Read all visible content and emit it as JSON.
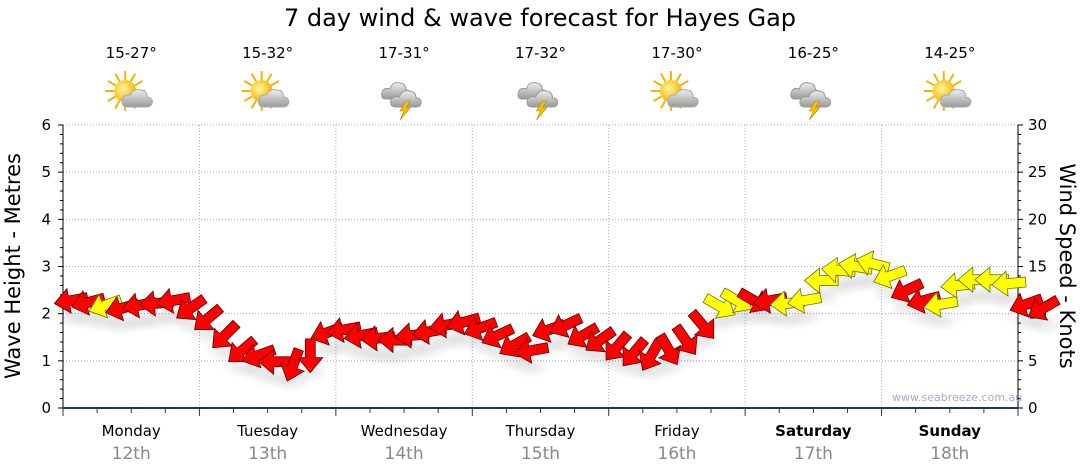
{
  "chart_data": {
    "type": "scatter",
    "title": "7 day wind & wave forecast for Hayes Gap",
    "ylabel_left": "Wave Height - Metres",
    "ylabel_right": "Wind Speed - Knots",
    "ylim_left": [
      0,
      6
    ],
    "ylim_right": [
      0,
      30
    ],
    "yticks_left": [
      "0",
      "1",
      "2",
      "3",
      "4",
      "5",
      "6"
    ],
    "yticks_right": [
      "0",
      "5",
      "10",
      "15",
      "20",
      "25",
      "30"
    ],
    "grid": true,
    "watermark": "www.seabreeze.com.au",
    "days": [
      {
        "name": "Monday",
        "date": "12th",
        "temp": "15-27°",
        "icon": "sun-cloud",
        "weekend": false
      },
      {
        "name": "Tuesday",
        "date": "13th",
        "temp": "15-32°",
        "icon": "sun-cloud",
        "weekend": false
      },
      {
        "name": "Wednesday",
        "date": "14th",
        "temp": "17-31°",
        "icon": "storm",
        "weekend": false
      },
      {
        "name": "Thursday",
        "date": "15th",
        "temp": "17-32°",
        "icon": "storm",
        "weekend": false
      },
      {
        "name": "Friday",
        "date": "16th",
        "temp": "17-30°",
        "icon": "sun-cloud",
        "weekend": false
      },
      {
        "name": "Saturday",
        "date": "17th",
        "temp": "16-25°",
        "icon": "storm",
        "weekend": true
      },
      {
        "name": "Sunday",
        "date": "18th",
        "temp": "14-25°",
        "icon": "sun-cloud",
        "weekend": true
      }
    ],
    "colors": {
      "red": "#ff0000",
      "yellow": "#ffff00",
      "axis": "#1a3a5a"
    },
    "wind_points_interval_hours": 3,
    "wind_knots": [
      11.4,
      11.2,
      10.9,
      10.6,
      10.9,
      11.1,
      11.4,
      10.6,
      9.5,
      7.7,
      6.1,
      5.6,
      4.9,
      4.6,
      5.6,
      8.0,
      8.3,
      7.7,
      7.4,
      7.2,
      7.7,
      8.1,
      8.8,
      9.1,
      8.5,
      7.7,
      6.7,
      6.1,
      8.3,
      8.8,
      7.7,
      7.2,
      6.5,
      5.9,
      5.6,
      6.2,
      7.2,
      8.8,
      10.8,
      11.4,
      11.4,
      11.4,
      11.1,
      11.4,
      13.5,
      14.6,
      15.0,
      15.3,
      14.0,
      12.5,
      11.4,
      11.0,
      13.0,
      13.6,
      13.6,
      13.2,
      11.0,
      10.6
    ],
    "wind_heading_deg": [
      190,
      195,
      200,
      195,
      190,
      185,
      190,
      215,
      220,
      225,
      220,
      200,
      180,
      250,
      270,
      200,
      190,
      190,
      185,
      180,
      185,
      190,
      190,
      195,
      200,
      205,
      210,
      190,
      200,
      205,
      210,
      215,
      230,
      230,
      240,
      300,
      305,
      310,
      330,
      330,
      330,
      190,
      185,
      190,
      180,
      175,
      170,
      165,
      200,
      205,
      195,
      190,
      185,
      180,
      180,
      185,
      200,
      210
    ],
    "wind_color": [
      "red",
      "red",
      "yellow",
      "red",
      "red",
      "red",
      "red",
      "red",
      "red",
      "red",
      "red",
      "red",
      "red",
      "red",
      "red",
      "red",
      "red",
      "red",
      "red",
      "red",
      "red",
      "red",
      "red",
      "red",
      "red",
      "red",
      "red",
      "red",
      "red",
      "red",
      "red",
      "red",
      "red",
      "red",
      "red",
      "red",
      "red",
      "red",
      "yellow",
      "yellow",
      "red",
      "red",
      "yellow",
      "yellow",
      "yellow",
      "yellow",
      "yellow",
      "yellow",
      "yellow",
      "red",
      "red",
      "yellow",
      "yellow",
      "yellow",
      "yellow",
      "yellow",
      "red",
      "red"
    ]
  }
}
